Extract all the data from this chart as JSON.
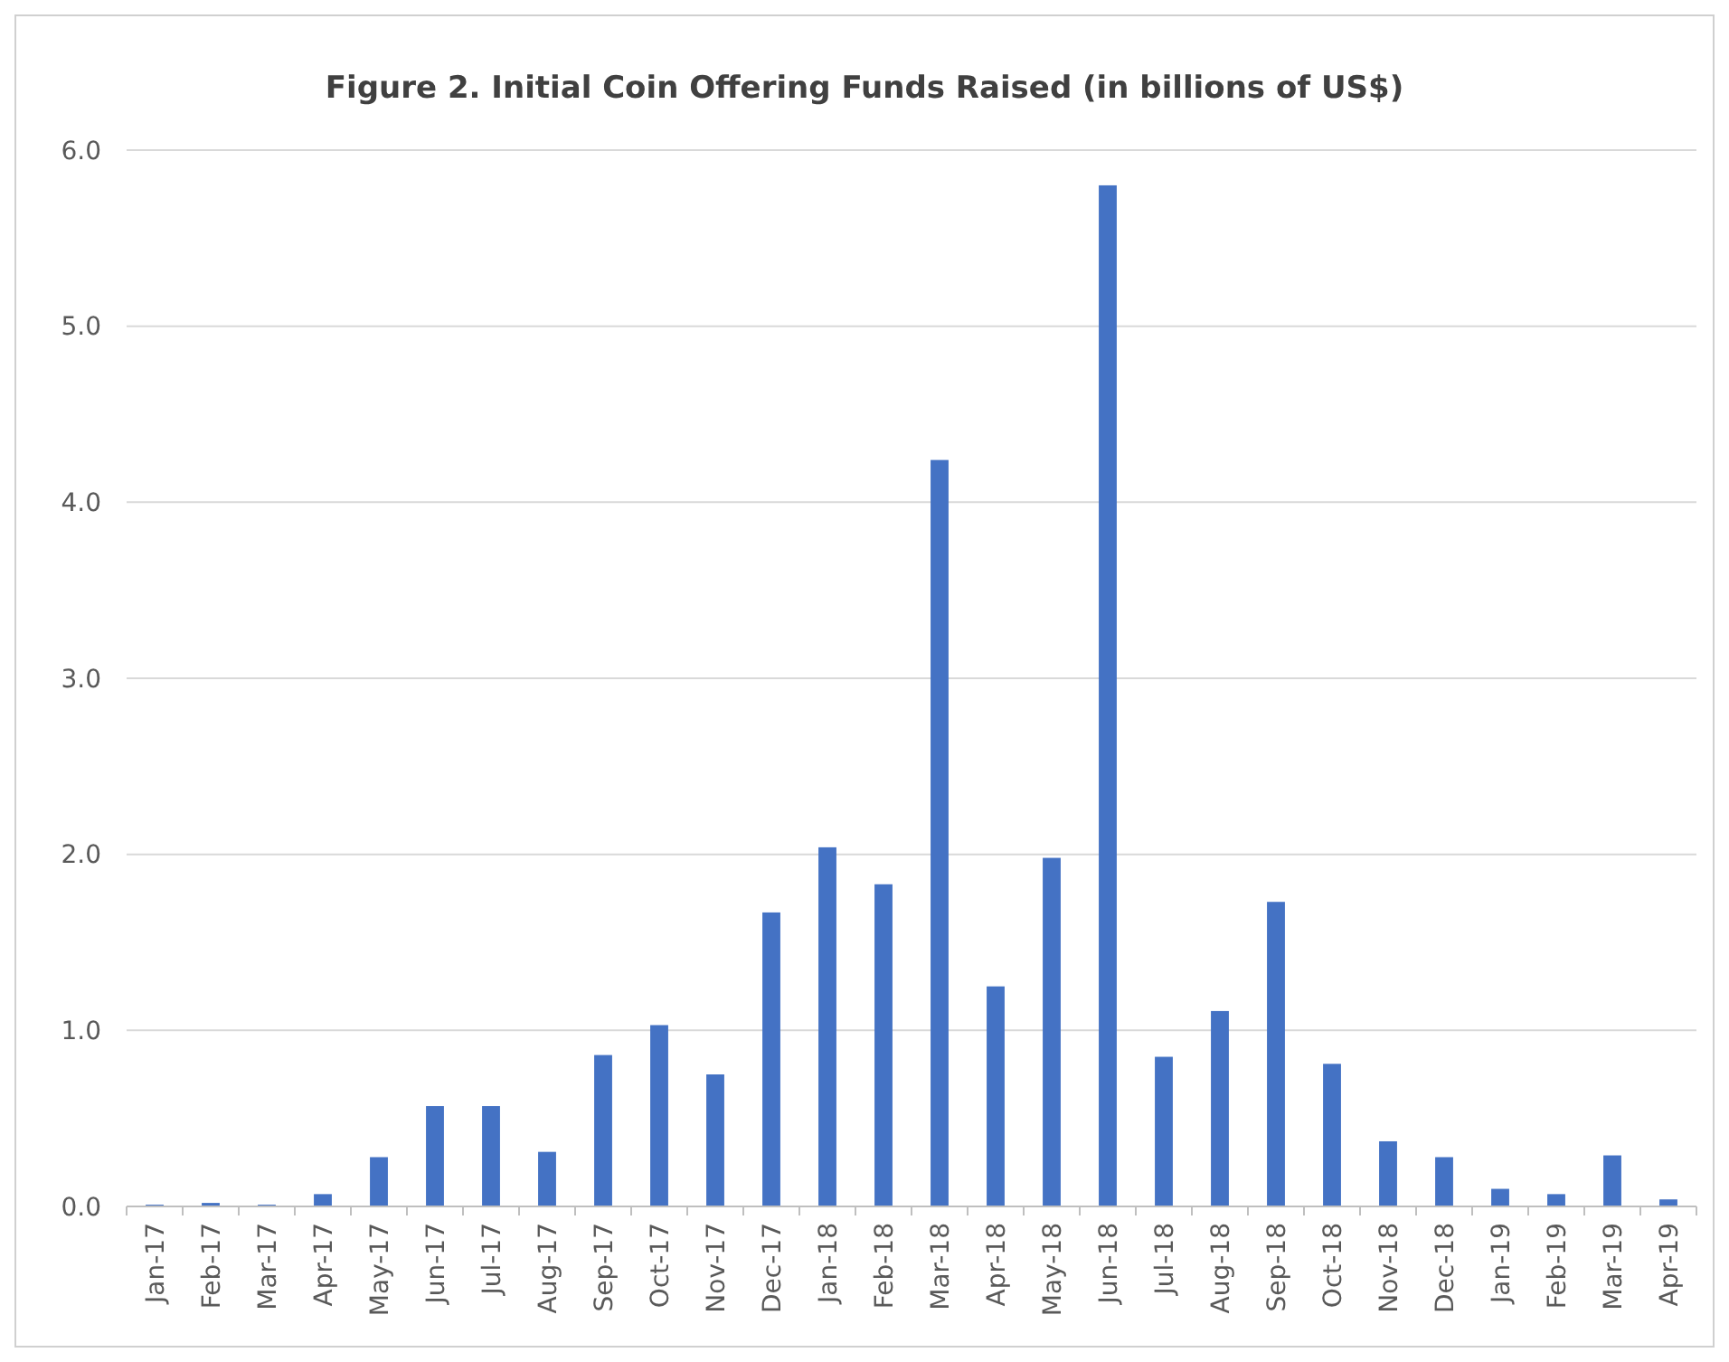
{
  "chart_data": {
    "type": "bar",
    "title": "Figure 2. Initial Coin Offering Funds Raised (in billions of US$)",
    "categories": [
      "Jan-17",
      "Feb-17",
      "Mar-17",
      "Apr-17",
      "May-17",
      "Jun-17",
      "Jul-17",
      "Aug-17",
      "Sep-17",
      "Oct-17",
      "Nov-17",
      "Dec-17",
      "Jan-18",
      "Feb-18",
      "Mar-18",
      "Apr-18",
      "May-18",
      "Jun-18",
      "Jul-18",
      "Aug-18",
      "Sep-18",
      "Oct-18",
      "Nov-18",
      "Dec-18",
      "Jan-19",
      "Feb-19",
      "Mar-19",
      "Apr-19"
    ],
    "values": [
      0.01,
      0.02,
      0.01,
      0.07,
      0.28,
      0.57,
      0.57,
      0.31,
      0.86,
      1.03,
      0.75,
      1.67,
      2.04,
      1.83,
      4.24,
      1.25,
      1.98,
      5.8,
      0.85,
      1.11,
      1.73,
      0.81,
      0.37,
      0.28,
      0.1,
      0.07,
      0.29,
      0.04
    ],
    "color": "#4472c4",
    "ylim": [
      0,
      6
    ],
    "yticks": [
      {
        "value": 0,
        "label": "0.0"
      },
      {
        "value": 1,
        "label": "1.0"
      },
      {
        "value": 2,
        "label": "2.0"
      },
      {
        "value": 3,
        "label": "3.0"
      },
      {
        "value": 4,
        "label": "4.0"
      },
      {
        "value": 5,
        "label": "5.0"
      },
      {
        "value": 6,
        "label": "6.0"
      }
    ],
    "grid": "y"
  }
}
